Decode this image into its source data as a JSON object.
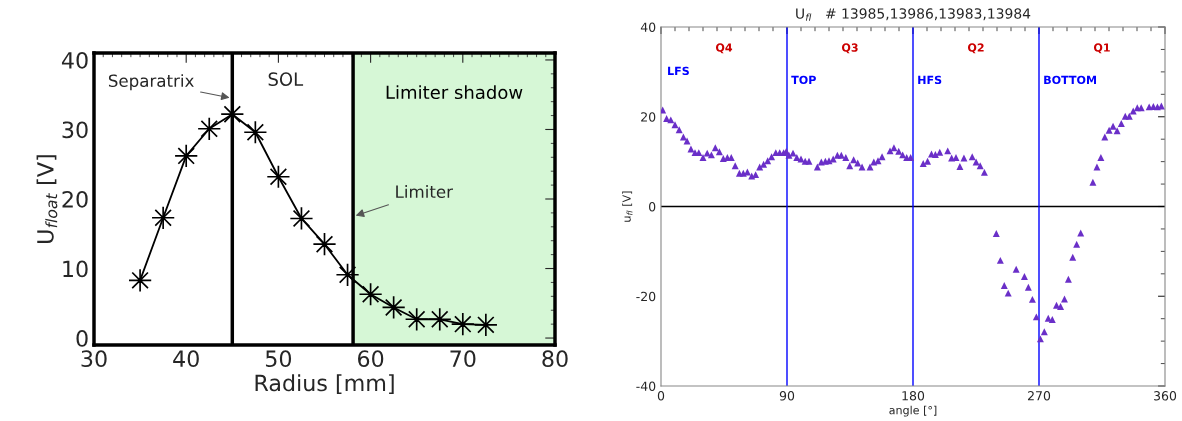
{
  "chart_data": [
    {
      "type": "line",
      "xlabel": "Radius [mm]",
      "ylabel": "U$_{float}$ [V]",
      "xlim": [
        30,
        80
      ],
      "ylim": [
        -1,
        41
      ],
      "xticks": [
        30,
        40,
        50,
        60,
        70,
        80
      ],
      "yticks": [
        0,
        10,
        20,
        30,
        40
      ],
      "marker": "star",
      "line_style": "solid",
      "grid": false,
      "x": [
        35,
        37.5,
        40,
        42.5,
        45,
        47.5,
        50,
        52.5,
        55,
        57.5,
        60,
        62.5,
        65,
        67.5,
        70,
        72.5
      ],
      "series": [
        {
          "color": "#000000",
          "values": [
            8.3,
            17.3,
            26.2,
            30.1,
            32.2,
            29.6,
            23.2,
            17.2,
            13.5,
            9.1,
            6.3,
            4.4,
            2.7,
            2.7,
            2.0,
            1.9
          ]
        }
      ],
      "ref_lines": [
        {
          "axis": "x",
          "value": 45,
          "label": "Separatrix",
          "color": "#000000"
        },
        {
          "axis": "x",
          "value": 58.1,
          "label": "Limiter",
          "color": "#000000"
        }
      ],
      "annotations": [
        "SOL"
      ],
      "bands": [
        {
          "axis": "x",
          "from": 58.1,
          "to": 80,
          "label": "Limiter shadow",
          "color": "#d6f7d6"
        }
      ]
    },
    {
      "type": "scatter",
      "title": "U$_{fl}$   # 13985,13986,13983,13984",
      "xlabel": "angle [°]",
      "ylabel": "u$_{fl}$ [V]",
      "xlim": [
        0,
        360
      ],
      "ylim": [
        -40,
        40
      ],
      "xticks": [
        0,
        90,
        180,
        270,
        360
      ],
      "yticks": [
        -40,
        -20,
        0,
        20,
        40
      ],
      "marker": "triangle",
      "grid": false,
      "x": [
        1.2,
        4,
        7,
        10,
        13,
        16,
        18.6,
        21.4,
        24.3,
        27,
        30,
        33,
        36,
        38.8,
        41.7,
        44.5,
        47.4,
        50.2,
        53,
        56,
        58.8,
        61.7,
        64.8,
        67.6,
        70.5,
        73.3,
        76.2,
        79,
        82,
        84.8,
        87.6,
        89.5,
        91.4,
        94.3,
        97,
        100,
        103,
        105.7,
        111.7,
        114.5,
        117.4,
        120,
        123,
        126,
        128.8,
        132,
        134.8,
        137.6,
        140.5,
        143.6,
        149.3,
        152,
        155,
        157.9,
        163.6,
        166.4,
        169.8,
        172.6,
        175.5,
        178.3,
        187.3,
        190.4,
        193.2,
        196,
        199.1,
        204.8,
        207.6,
        210.7,
        213.5,
        216.4,
        222.3,
        225.1,
        228,
        231,
        239.5,
        242.4,
        245.2,
        248,
        253.7,
        259.6,
        262.4,
        265.3,
        268.1,
        271,
        273.8,
        276.6,
        279.5,
        282.5,
        285.4,
        288.2,
        291,
        294.1,
        296.9,
        299.8,
        308.5,
        311.4,
        314.2,
        317,
        320.1,
        322.9,
        325.8,
        328.8,
        331.6,
        334.5,
        337.3,
        340.2,
        343,
        348.7,
        351.7,
        354.6,
        357.4
      ],
      "series": [
        {
          "color": "#6a2fc8",
          "values": [
            21.5,
            19.6,
            19.3,
            18.2,
            17.1,
            15.5,
            14.6,
            12.8,
            12,
            12,
            10.9,
            11.9,
            11.5,
            13.1,
            12.2,
            10.7,
            10.9,
            10.9,
            9.1,
            7.4,
            7.4,
            7.7,
            6.8,
            7.1,
            8.8,
            9.4,
            10.2,
            11.1,
            12,
            12,
            12,
            12.3,
            11.4,
            11.9,
            10.9,
            10.6,
            10.1,
            10.1,
            8.8,
            9.9,
            10.1,
            10.2,
            10.6,
            11.4,
            11.4,
            10.9,
            9.1,
            10.4,
            9.7,
            8.8,
            8.8,
            9.9,
            10.2,
            11.1,
            12.4,
            13.1,
            12.3,
            11.5,
            10.9,
            10.9,
            9.6,
            10.1,
            11.7,
            11.6,
            12.1,
            12.4,
            10.8,
            10.9,
            8.9,
            10.8,
            11.1,
            9.9,
            9.1,
            7.6,
            -6.0,
            -12.0,
            -17.6,
            -19.3,
            -14.0,
            -15.6,
            -18.0,
            -20.7,
            -24.6,
            -29.5,
            -27.9,
            -24.9,
            -25.2,
            -22.0,
            -22.3,
            -20.6,
            -16.2,
            -11.3,
            -8.4,
            -5.9,
            5.4,
            8.8,
            10.9,
            15.5,
            17.0,
            17.9,
            16.9,
            18.5,
            20.1,
            20.1,
            21.3,
            22.0,
            22.0,
            22.2,
            22.3,
            22.2,
            22.4
          ]
        }
      ],
      "ref_lines": [
        {
          "axis": "y",
          "value": 0,
          "color": "#000000"
        },
        {
          "axis": "x",
          "value": 90,
          "label": "TOP",
          "color": "#0000ff"
        },
        {
          "axis": "x",
          "value": 180,
          "label": "HFS",
          "color": "#0000ff"
        },
        {
          "axis": "x",
          "value": 270,
          "label": "BOTTOM",
          "color": "#0000ff"
        }
      ],
      "annotations": [
        "Q4",
        "Q3",
        "Q2",
        "Q1",
        "LFS"
      ]
    }
  ]
}
